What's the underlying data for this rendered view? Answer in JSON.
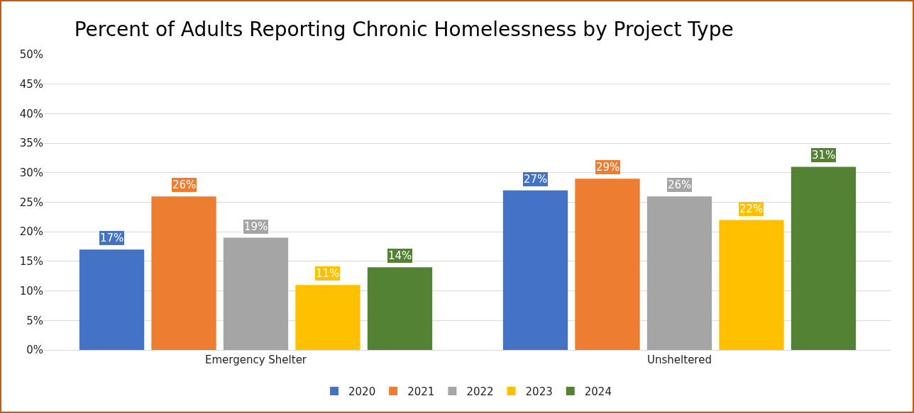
{
  "chart_data": {
    "type": "bar",
    "title": "Percent of Adults Reporting Chronic Homelessness by Project Type",
    "categories": [
      "Emergency Shelter",
      "Unsheltered"
    ],
    "series": [
      {
        "name": "2020",
        "color": "#4472c4",
        "values": [
          17,
          27
        ],
        "value_labels": [
          "17%",
          "27%"
        ]
      },
      {
        "name": "2021",
        "color": "#ed7d31",
        "values": [
          26,
          29
        ],
        "value_labels": [
          "26%",
          "29%"
        ]
      },
      {
        "name": "2022",
        "color": "#a5a5a5",
        "values": [
          19,
          26
        ],
        "value_labels": [
          "19%",
          "26%"
        ]
      },
      {
        "name": "2023",
        "color": "#ffc000",
        "values": [
          11,
          22
        ],
        "value_labels": [
          "11%",
          "22%"
        ]
      },
      {
        "name": "2024",
        "color": "#548235",
        "values": [
          14,
          31
        ],
        "value_labels": [
          "14%",
          "31%"
        ]
      }
    ],
    "ylim": [
      0,
      50
    ],
    "yticks": [
      {
        "value": 0,
        "label": "0%"
      },
      {
        "value": 5,
        "label": "5%"
      },
      {
        "value": 10,
        "label": "10%"
      },
      {
        "value": 15,
        "label": "15%"
      },
      {
        "value": 20,
        "label": "20%"
      },
      {
        "value": 25,
        "label": "25%"
      },
      {
        "value": 30,
        "label": "30%"
      },
      {
        "value": 35,
        "label": "35%"
      },
      {
        "value": 40,
        "label": "40%"
      },
      {
        "value": 45,
        "label": "45%"
      },
      {
        "value": 50,
        "label": "50%"
      }
    ],
    "grid": "y",
    "legend": "bottom"
  }
}
